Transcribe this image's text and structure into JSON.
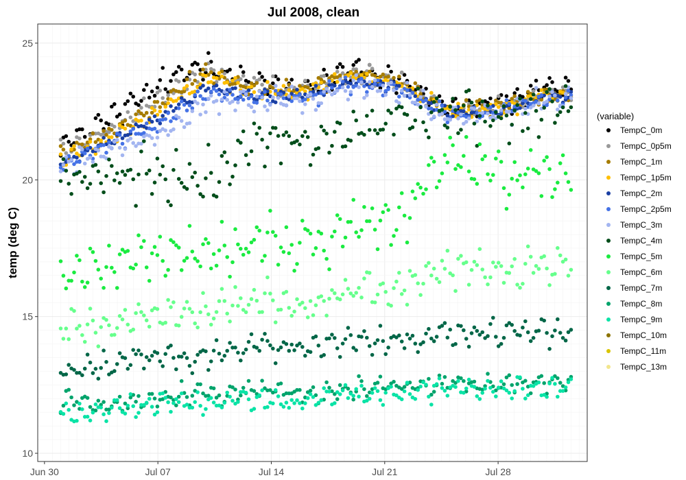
{
  "chart_data": {
    "type": "scatter",
    "title": "Jul 2008, clean",
    "xlabel": "",
    "ylabel": "temp (deg C)",
    "x_axis": {
      "type": "date",
      "range": [
        "2008-06-29T14:00",
        "2008-08-02T12:00"
      ],
      "ticks": [
        {
          "date": "2008-06-30",
          "label": "Jun 30"
        },
        {
          "date": "2008-07-07",
          "label": "Jul 07"
        },
        {
          "date": "2008-07-14",
          "label": "Jul 14"
        },
        {
          "date": "2008-07-21",
          "label": "Jul 21"
        },
        {
          "date": "2008-07-28",
          "label": "Jul 28"
        }
      ]
    },
    "y_axis": {
      "range": [
        9.7,
        25.7
      ],
      "ticks": [
        10,
        15,
        20,
        25
      ]
    },
    "grid": true,
    "legend": {
      "title": "(variable)",
      "placement": "right"
    },
    "series": [
      {
        "name": "TempC_0m",
        "color": "#000000",
        "x": [
          "2008-07-01",
          "2008-07-04",
          "2008-07-07",
          "2008-07-10",
          "2008-07-13",
          "2008-07-16",
          "2008-07-19",
          "2008-07-22",
          "2008-07-25",
          "2008-07-28",
          "2008-07-31"
        ],
        "y": [
          21.2,
          22.2,
          23.4,
          24.3,
          23.5,
          23.4,
          24.0,
          23.7,
          22.6,
          22.8,
          23.3
        ],
        "noise": 0.5
      },
      {
        "name": "TempC_0p5m",
        "color": "#999999",
        "x": [
          "2008-07-01",
          "2008-07-04",
          "2008-07-07",
          "2008-07-10",
          "2008-07-13",
          "2008-07-16",
          "2008-07-19",
          "2008-07-22",
          "2008-07-25",
          "2008-07-28",
          "2008-07-31"
        ],
        "y": [
          21.0,
          21.8,
          22.9,
          24.0,
          23.4,
          23.3,
          23.9,
          23.6,
          22.6,
          22.7,
          23.2
        ],
        "noise": 0.35
      },
      {
        "name": "TempC_1m",
        "color": "#a67c00",
        "x": [
          "2008-07-01",
          "2008-07-04",
          "2008-07-07",
          "2008-07-10",
          "2008-07-13",
          "2008-07-16",
          "2008-07-19",
          "2008-07-22",
          "2008-07-25",
          "2008-07-28",
          "2008-07-31"
        ],
        "y": [
          20.9,
          21.7,
          22.7,
          24.0,
          23.3,
          23.3,
          23.9,
          23.6,
          22.5,
          22.7,
          23.1
        ],
        "noise": 0.3
      },
      {
        "name": "TempC_1p5m",
        "color": "#ffbf00",
        "x": [
          "2008-07-01",
          "2008-07-04",
          "2008-07-07",
          "2008-07-10",
          "2008-07-13",
          "2008-07-16",
          "2008-07-19",
          "2008-07-22",
          "2008-07-25",
          "2008-07-28",
          "2008-07-31"
        ],
        "y": [
          20.8,
          21.5,
          22.5,
          23.7,
          23.2,
          23.2,
          23.8,
          23.5,
          22.5,
          22.6,
          23.1
        ],
        "noise": 0.3
      },
      {
        "name": "TempC_2m",
        "color": "#1a3fa3",
        "x": [
          "2008-07-01",
          "2008-07-04",
          "2008-07-07",
          "2008-07-10",
          "2008-07-13",
          "2008-07-16",
          "2008-07-19",
          "2008-07-22",
          "2008-07-25",
          "2008-07-28",
          "2008-07-31"
        ],
        "y": [
          20.6,
          21.4,
          22.2,
          23.4,
          23.1,
          23.1,
          23.6,
          23.4,
          22.4,
          22.5,
          23.0
        ],
        "noise": 0.25
      },
      {
        "name": "TempC_2p5m",
        "color": "#4572e6",
        "x": [
          "2008-07-01",
          "2008-07-04",
          "2008-07-07",
          "2008-07-10",
          "2008-07-13",
          "2008-07-16",
          "2008-07-19",
          "2008-07-22",
          "2008-07-25",
          "2008-07-28",
          "2008-07-31"
        ],
        "y": [
          20.5,
          21.3,
          22.0,
          23.2,
          23.0,
          23.0,
          23.5,
          23.3,
          22.4,
          22.5,
          23.0
        ],
        "noise": 0.3
      },
      {
        "name": "TempC_3m",
        "color": "#a3b5f0",
        "x": [
          "2008-07-01",
          "2008-07-04",
          "2008-07-07",
          "2008-07-10",
          "2008-07-13",
          "2008-07-16",
          "2008-07-19",
          "2008-07-22",
          "2008-07-25",
          "2008-07-28",
          "2008-07-31"
        ],
        "y": [
          20.4,
          21.1,
          21.6,
          22.8,
          22.9,
          22.9,
          23.4,
          23.2,
          22.3,
          22.4,
          22.9
        ],
        "noise": 0.45
      },
      {
        "name": "TempC_4m",
        "color": "#004d1a",
        "x": [
          "2008-07-01",
          "2008-07-04",
          "2008-07-07",
          "2008-07-10",
          "2008-07-13",
          "2008-07-16",
          "2008-07-19",
          "2008-07-22",
          "2008-07-25",
          "2008-07-28",
          "2008-07-31"
        ],
        "y": [
          19.9,
          20.2,
          20.1,
          20.0,
          21.5,
          21.3,
          21.8,
          22.3,
          22.4,
          22.3,
          22.5
        ],
        "noise": 0.9
      },
      {
        "name": "TempC_5m",
        "color": "#1aeb40",
        "x": [
          "2008-07-01",
          "2008-07-04",
          "2008-07-07",
          "2008-07-10",
          "2008-07-13",
          "2008-07-16",
          "2008-07-19",
          "2008-07-22",
          "2008-07-25",
          "2008-07-28",
          "2008-07-31"
        ],
        "y": [
          16.5,
          16.8,
          17.4,
          17.2,
          17.8,
          17.6,
          18.3,
          18.8,
          20.8,
          20.3,
          20.2
        ],
        "noise": 1.0
      },
      {
        "name": "TempC_6m",
        "color": "#66ff8c",
        "x": [
          "2008-07-01",
          "2008-07-04",
          "2008-07-07",
          "2008-07-10",
          "2008-07-13",
          "2008-07-16",
          "2008-07-19",
          "2008-07-22",
          "2008-07-25",
          "2008-07-28",
          "2008-07-31"
        ],
        "y": [
          14.6,
          14.6,
          15.1,
          15.1,
          15.6,
          15.3,
          16.1,
          16.0,
          16.9,
          16.5,
          16.9
        ],
        "noise": 0.7
      },
      {
        "name": "TempC_7m",
        "color": "#006647",
        "x": [
          "2008-07-01",
          "2008-07-04",
          "2008-07-07",
          "2008-07-10",
          "2008-07-13",
          "2008-07-16",
          "2008-07-19",
          "2008-07-22",
          "2008-07-25",
          "2008-07-28",
          "2008-07-31"
        ],
        "y": [
          13.0,
          13.2,
          13.6,
          13.5,
          14.0,
          13.8,
          14.2,
          14.1,
          14.4,
          14.3,
          14.5
        ],
        "noise": 0.5
      },
      {
        "name": "TempC_8m",
        "color": "#00a36b",
        "x": [
          "2008-07-01",
          "2008-07-04",
          "2008-07-07",
          "2008-07-10",
          "2008-07-13",
          "2008-07-16",
          "2008-07-19",
          "2008-07-22",
          "2008-07-25",
          "2008-07-28",
          "2008-07-31"
        ],
        "y": [
          11.9,
          11.8,
          12.0,
          12.2,
          12.3,
          12.2,
          12.4,
          12.5,
          12.6,
          12.5,
          12.6
        ],
        "noise": 0.4
      },
      {
        "name": "TempC_9m",
        "color": "#0ae3a6",
        "x": [
          "2008-07-01",
          "2008-07-04",
          "2008-07-07",
          "2008-07-10",
          "2008-07-13",
          "2008-07-16",
          "2008-07-19",
          "2008-07-22",
          "2008-07-25",
          "2008-07-28",
          "2008-07-31"
        ],
        "y": [
          11.4,
          11.6,
          11.8,
          11.9,
          12.0,
          11.9,
          12.2,
          12.2,
          12.3,
          12.3,
          12.4
        ],
        "noise": 0.4
      },
      {
        "name": "TempC_10m",
        "color": "#8c7300",
        "x": [],
        "y": [],
        "noise": 0
      },
      {
        "name": "TempC_11m",
        "color": "#d9c400",
        "x": [],
        "y": [],
        "noise": 0
      },
      {
        "name": "TempC_13m",
        "color": "#f2e68c",
        "x": [],
        "y": [],
        "noise": 0
      }
    ]
  }
}
